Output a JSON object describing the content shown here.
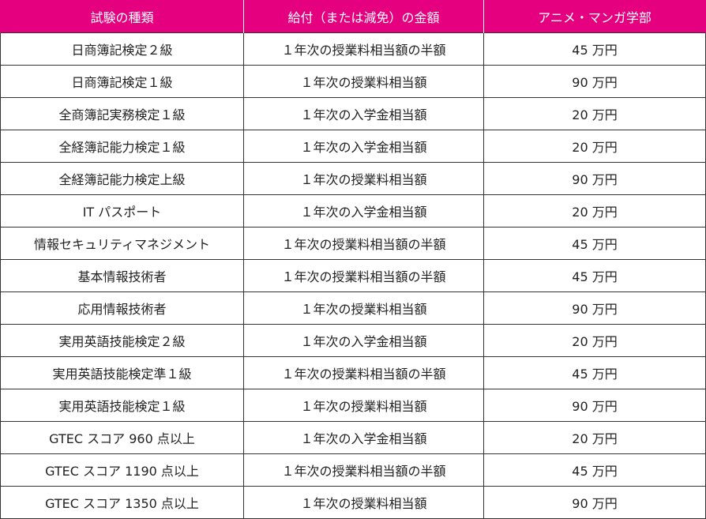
{
  "header": {
    "col1": "試験の種類",
    "col2": "給付（または減免）の金額",
    "col3": "アニメ・マンガ学部"
  },
  "rows": [
    {
      "exam": "日商簿記検定２級",
      "benefit": "１年次の授業料相当額の半額",
      "amount": "45 万円"
    },
    {
      "exam": "日商簿記検定１級",
      "benefit": "１年次の授業料相当額",
      "amount": "90 万円"
    },
    {
      "exam": "全商簿記実務検定１級",
      "benefit": "１年次の入学金相当額",
      "amount": "20 万円"
    },
    {
      "exam": "全経簿記能力検定１級",
      "benefit": "１年次の入学金相当額",
      "amount": "20 万円"
    },
    {
      "exam": "全経簿記能力検定上級",
      "benefit": "１年次の授業料相当額",
      "amount": "90 万円"
    },
    {
      "exam": "IT パスポート",
      "benefit": "１年次の入学金相当額",
      "amount": "20 万円"
    },
    {
      "exam": "情報セキュリティマネジメント",
      "benefit": "１年次の授業料相当額の半額",
      "amount": "45 万円"
    },
    {
      "exam": "基本情報技術者",
      "benefit": "１年次の授業料相当額の半額",
      "amount": "45 万円"
    },
    {
      "exam": "応用情報技術者",
      "benefit": "１年次の授業料相当額",
      "amount": "90 万円"
    },
    {
      "exam": "実用英語技能検定２級",
      "benefit": "１年次の入学金相当額",
      "amount": "20 万円"
    },
    {
      "exam": "実用英語技能検定準１級",
      "benefit": "１年次の授業料相当額の半額",
      "amount": "45 万円"
    },
    {
      "exam": "実用英語技能検定１級",
      "benefit": "１年次の授業料相当額",
      "amount": "90 万円"
    },
    {
      "exam": "GTEC スコア 960 点以上",
      "benefit": "１年次の入学金相当額",
      "amount": "20 万円"
    },
    {
      "exam": "GTEC スコア 1190 点以上",
      "benefit": "１年次の授業料相当額の半額",
      "amount": "45 万円"
    },
    {
      "exam": "GTEC スコア 1350 点以上",
      "benefit": "１年次の授業料相当額",
      "amount": "90 万円"
    }
  ],
  "colors": {
    "header_bg": "#e4007f",
    "header_text": "#ffffff",
    "border": "#333333"
  }
}
